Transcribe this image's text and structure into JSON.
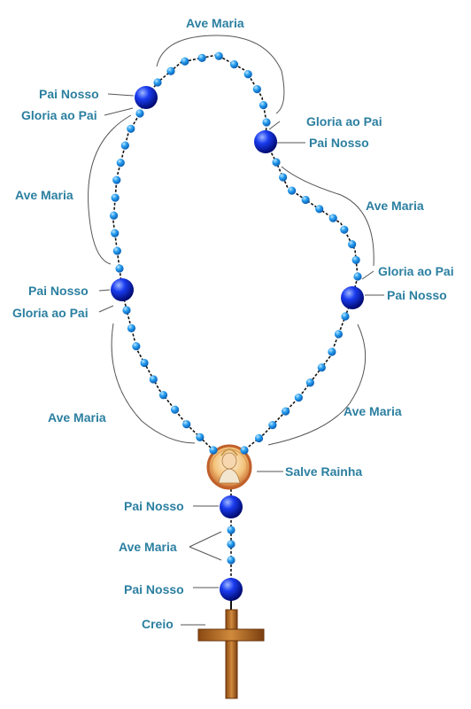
{
  "labels": {
    "top_ave_maria": "Ave Maria",
    "left_pai_nosso_1": "Pai Nosso",
    "left_gloria_1": "Gloria ao Pai",
    "left_ave_maria_1": "Ave Maria",
    "left_pai_nosso_2": "Pai Nosso",
    "left_gloria_2": "Gloria ao Pai",
    "left_ave_maria_2": "Ave Maria",
    "right_gloria_1": "Gloria ao Pai",
    "right_pai_nosso_1": "Pai Nosso",
    "right_ave_maria_1": "Ave Maria",
    "right_gloria_2": "Gloria ao Pai",
    "right_pai_nosso_2": "Pai Nosso",
    "right_ave_maria_2": "Ave Maria",
    "salve_rainha": "Salve Rainha",
    "stem_pai_nosso_1": "Pai Nosso",
    "stem_ave_maria": "Ave Maria",
    "stem_pai_nosso_2": "Pai Nosso",
    "creio": "Creio"
  },
  "colors": {
    "label_text": "#2b7fa0",
    "small_bead": "#1e90e8",
    "large_bead": "#0022cc",
    "cord": "#111111",
    "leader_line": "#555555",
    "cross": "#b5651d",
    "medal_rim": "#c0602a"
  },
  "icons": {
    "medal": "virgin-mary-medal-icon",
    "cross": "crucifix-cross-icon"
  }
}
